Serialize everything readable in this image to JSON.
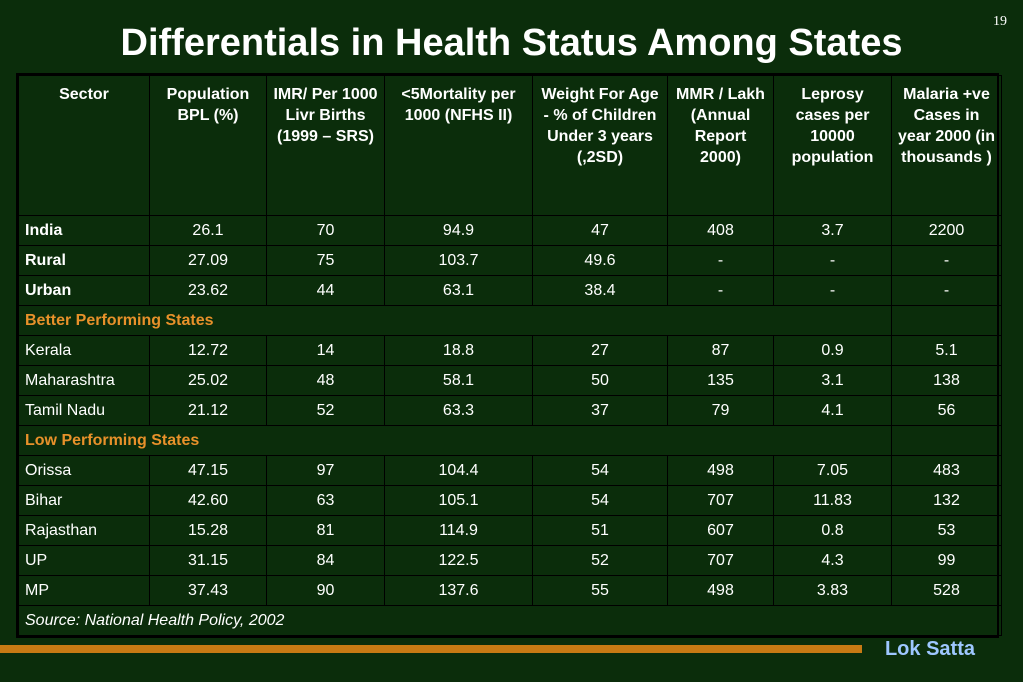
{
  "slide_number": "19",
  "title": "Differentials in Health Status Among States",
  "headers": [
    "Sector",
    "Population BPL (%)",
    "IMR/ Per 1000 Livr Births (1999 – SRS)",
    "<5Mortality per 1000 (NFHS II)",
    "Weight For Age - % of Children Under 3 years (,2SD)",
    "MMR / Lakh (Annual Report 2000)",
    "Leprosy cases per 10000 population",
    "Malaria +ve Cases in year 2000 (in thousands )"
  ],
  "national_rows": [
    [
      "India",
      "26.1",
      "70",
      "94.9",
      "47",
      "408",
      "3.7",
      "2200"
    ],
    [
      "Rural",
      "27.09",
      "75",
      "103.7",
      "49.6",
      "-",
      "-",
      "-"
    ],
    [
      "Urban",
      "23.62",
      "44",
      "63.1",
      "38.4",
      "-",
      "-",
      "-"
    ]
  ],
  "better_label": "Better Performing States",
  "better_rows": [
    [
      "Kerala",
      "12.72",
      "14",
      "18.8",
      "27",
      "87",
      "0.9",
      "5.1"
    ],
    [
      "Maharashtra",
      "25.02",
      "48",
      "58.1",
      "50",
      "135",
      "3.1",
      "138"
    ],
    [
      "Tamil Nadu",
      "21.12",
      "52",
      "63.3",
      "37",
      "79",
      "4.1",
      "56"
    ]
  ],
  "low_label": "Low Performing States",
  "low_rows": [
    [
      "Orissa",
      "47.15",
      "97",
      "104.4",
      "54",
      "498",
      "7.05",
      "483"
    ],
    [
      "Bihar",
      "42.60",
      "63",
      "105.1",
      "54",
      "707",
      "11.83",
      "132"
    ],
    [
      "Rajasthan",
      "15.28",
      "81",
      "114.9",
      "51",
      "607",
      "0.8",
      "53"
    ],
    [
      "UP",
      "31.15",
      "84",
      "122.5",
      "52",
      "707",
      "4.3",
      "99"
    ],
    [
      "MP",
      "37.43",
      "90",
      "137.6",
      "55",
      "498",
      "3.83",
      "528"
    ]
  ],
  "source": "Source: National Health Policy, 2002",
  "brand": "Lok Satta",
  "colors": {
    "background": "#0b2d0b",
    "section_label": "#e8912a",
    "footer_bar": "#c77a14",
    "brand": "#9ec7ff"
  }
}
